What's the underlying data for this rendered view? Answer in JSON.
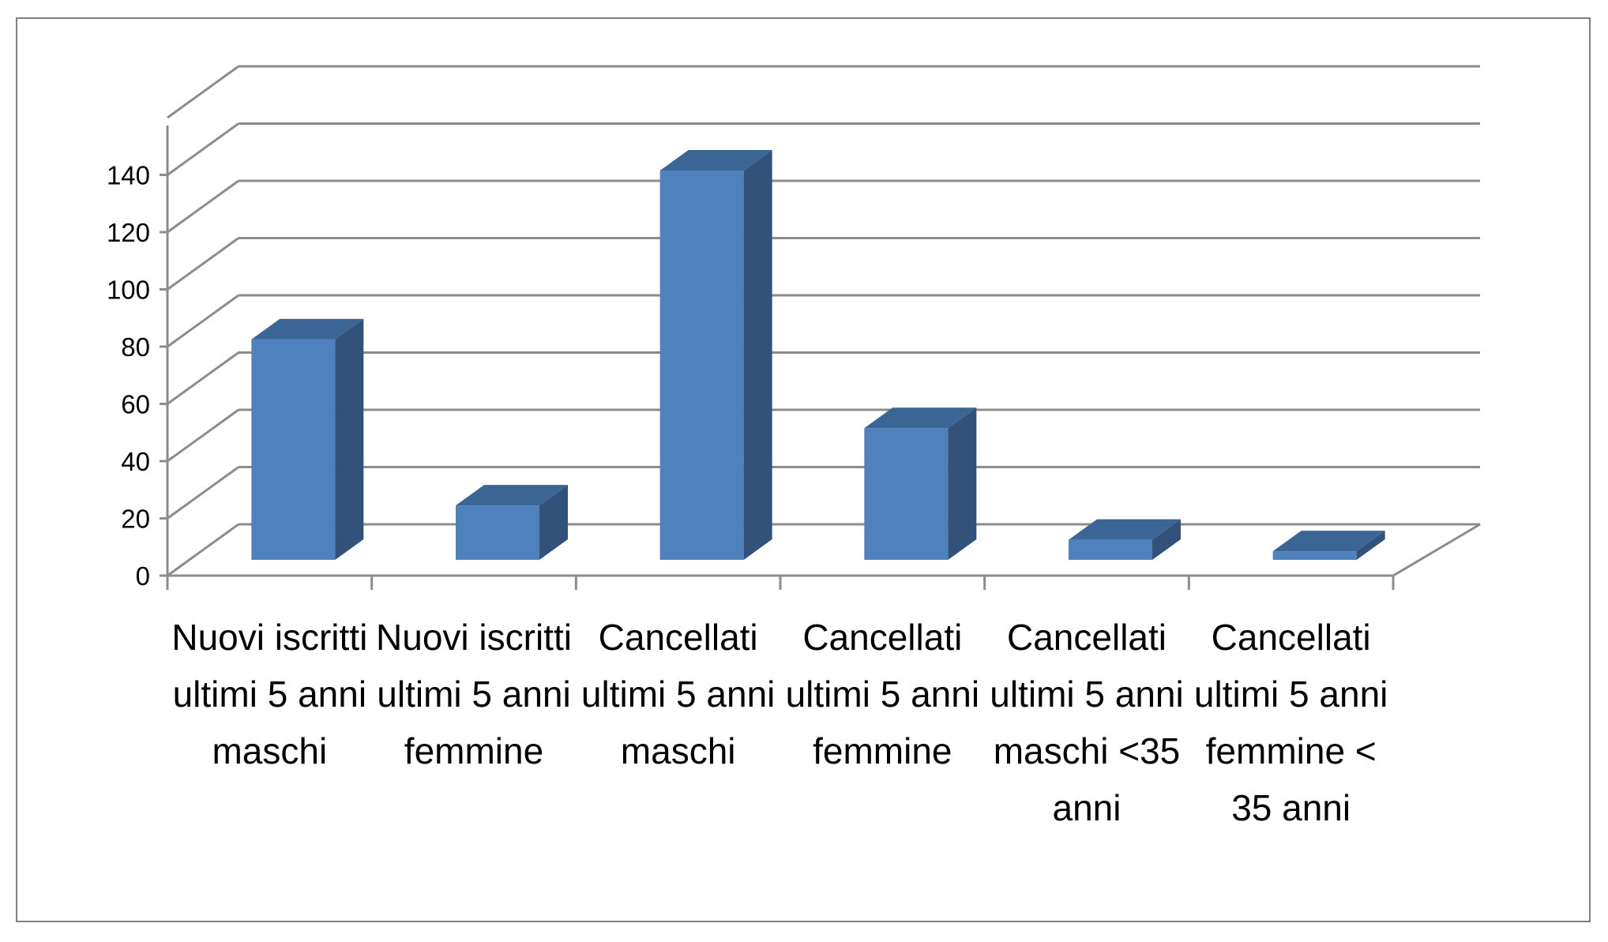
{
  "chart_data": {
    "type": "bar",
    "style": "3d-column",
    "categories": [
      "Nuovi iscritti ultimi 5 anni maschi",
      "Nuovi iscritti ultimi 5 anni femmine",
      "Cancellati ultimi 5 anni maschi",
      "Cancellati ultimi 5 anni femmine",
      "Cancellati ultimi 5 anni maschi <35 anni",
      "Cancellati ultimi 5 anni femmine < 35 anni"
    ],
    "values": [
      77,
      19,
      136,
      46,
      7,
      3
    ],
    "yticks": [
      "0",
      "20",
      "40",
      "60",
      "80",
      "100",
      "120",
      "140"
    ],
    "ylim": [
      0,
      160
    ],
    "grid": true,
    "legend": "none",
    "colors": {
      "front": "#4F81BD",
      "top": "#3B6594",
      "side": "#33527A",
      "grid": "#8C8C8C"
    }
  }
}
